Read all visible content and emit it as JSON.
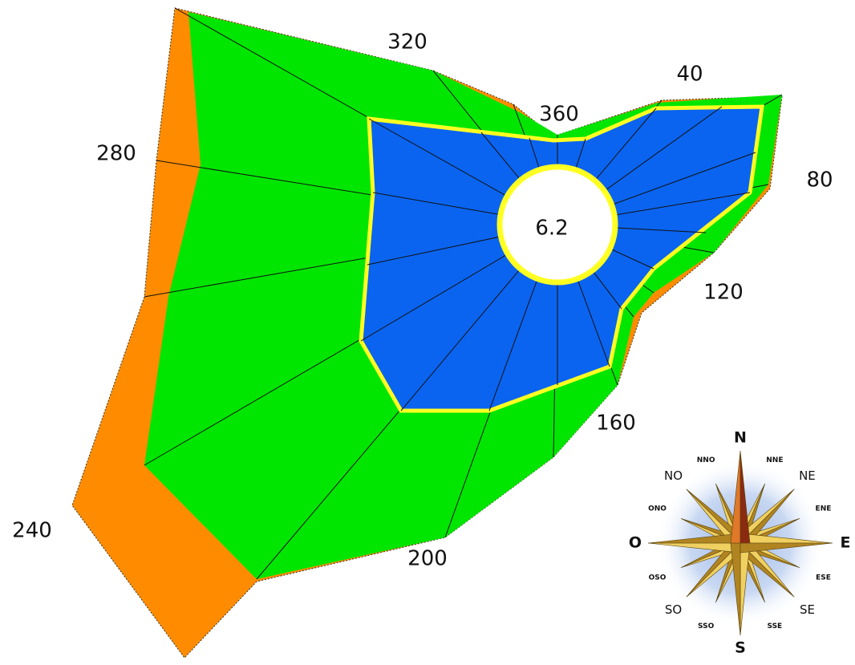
{
  "center_label": "6.2",
  "bearing_labels": [
    "360",
    "40",
    "80",
    "120",
    "160",
    "200",
    "240",
    "280",
    "320"
  ],
  "compass_labels": [
    "N",
    "NNE",
    "NE",
    "ENE",
    "E",
    "ESE",
    "SE",
    "SSE",
    "S",
    "SSO",
    "SO",
    "OSO",
    "O",
    "ONO",
    "NO",
    "NNO"
  ]
}
